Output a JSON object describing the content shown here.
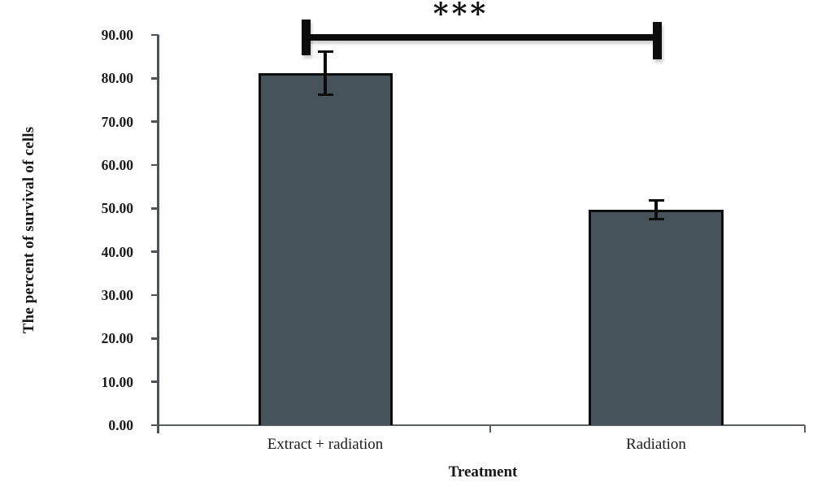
{
  "figure": {
    "background_color": "#ffffff",
    "axis_color": "#5a5f61",
    "text_color": "#1b1b1b"
  },
  "chart_data": {
    "type": "bar",
    "title": "",
    "xlabel": "Treatment",
    "ylabel": "The percent of survival of cells",
    "categories": [
      "Extract + radiation",
      "Radiation"
    ],
    "values": [
      81.2,
      49.7
    ],
    "error_bars": [
      5.0,
      2.2
    ],
    "ylim": [
      0,
      90
    ],
    "ytick_step": 10,
    "ytick_labels": [
      "0.00",
      "10.00",
      "20.00",
      "30.00",
      "40.00",
      "50.00",
      "60.00",
      "70.00",
      "80.00",
      "90.00"
    ],
    "grid": false,
    "legend_position": "none",
    "bar_color": "#47535b",
    "bar_border_color": "#0d0d0d",
    "annotation": {
      "text": "***",
      "type": "significance-bracket",
      "between": [
        "Extract + radiation",
        "Radiation"
      ]
    }
  }
}
